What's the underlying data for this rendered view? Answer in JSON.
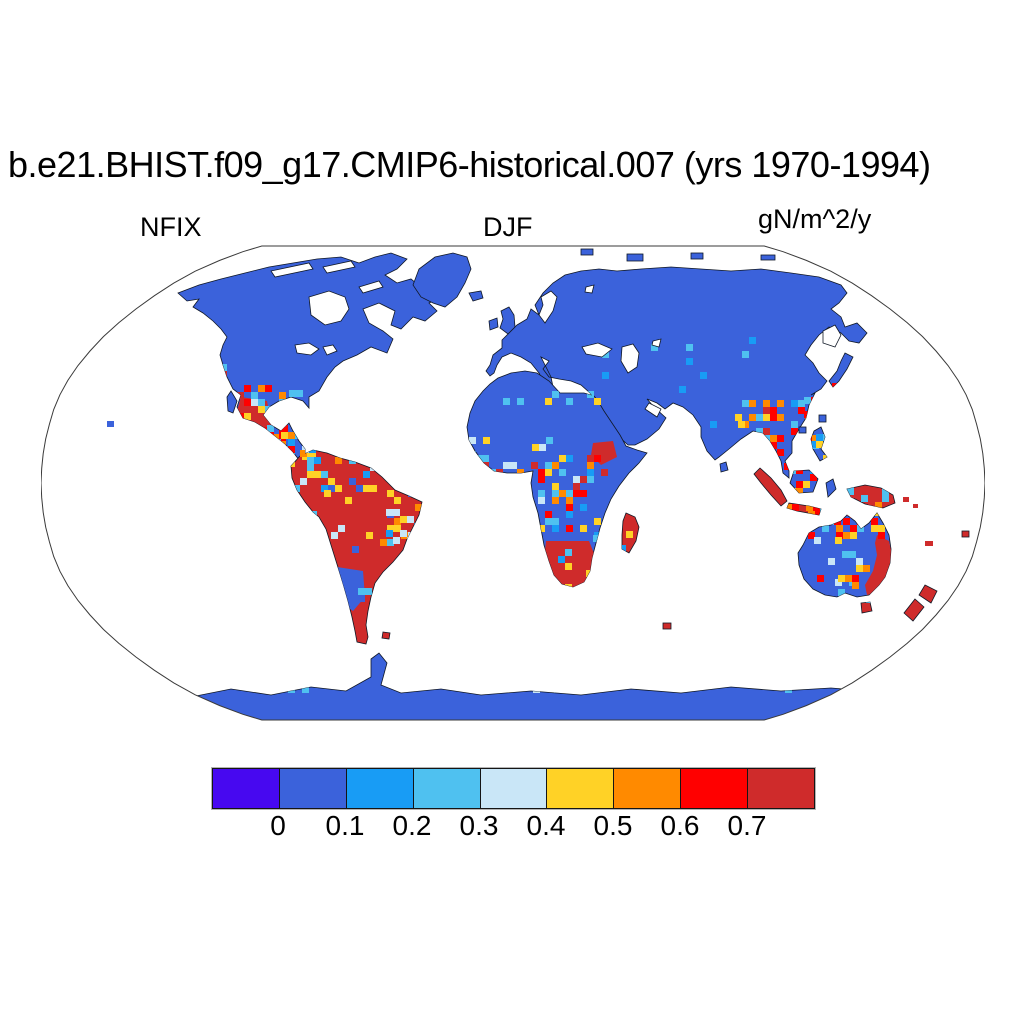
{
  "header": {
    "title": "b.e21.BHIST.f09_g17.CMIP6-historical.007 (yrs 1970-1994)"
  },
  "labels": {
    "variable": "NFIX",
    "season": "DJF",
    "units": "gN/m^2/y"
  },
  "chart_data": {
    "type": "heatmap",
    "subtype": "global-gridded-map",
    "projection": "Robinson",
    "title": "b.e21.BHIST.f09_g17.CMIP6-historical.007 (yrs 1970-1994)",
    "variable": "NFIX",
    "season": "DJF",
    "units": "gN/m^2/y",
    "ocean_color": "#ffffff",
    "colorbar": {
      "orientation": "horizontal",
      "levels": [
        0,
        0.1,
        0.2,
        0.3,
        0.4,
        0.5,
        0.6,
        0.7
      ],
      "tick_labels": [
        "0",
        "0.1",
        "0.2",
        "0.3",
        "0.4",
        "0.5",
        "0.6",
        "0.7"
      ],
      "colors": [
        "#4708F0",
        "#3B62DB",
        "#189CF5",
        "#4FC1F0",
        "#C9E6F7",
        "#FFD226",
        "#FF8A00",
        "#FF0000",
        "#CF2B2B"
      ]
    },
    "map_summary": {
      "background_land_value_range": "0 to 0.1 (royal blue) over most extratropical land",
      "high_value_regions": [
        "South America (Amazon basin and most of continent, > 0.7)",
        "Western Mexico and Central America (mixed 0.2-0.7+)",
        "Central Africa mottled band (0.1-0.7+)",
        "Southern Africa (> 0.7)",
        "Eastern Madagascar (> 0.7)",
        "Southeast Asia: Myanmar/Thailand/Indochina (0.4-0.7+)",
        "Sumatra, Java, Borneo, New Guinea (> 0.7 with mottling)",
        "Northern and eastern Australian coasts (0.5 to > 0.7)",
        "New Zealand (> 0.7)"
      ],
      "low_value_regions": [
        "North America",
        "Greenland",
        "Eurasia",
        "Sahara and northern Africa",
        "India (mostly)",
        "Interior Australia",
        "Antarctica"
      ]
    }
  }
}
